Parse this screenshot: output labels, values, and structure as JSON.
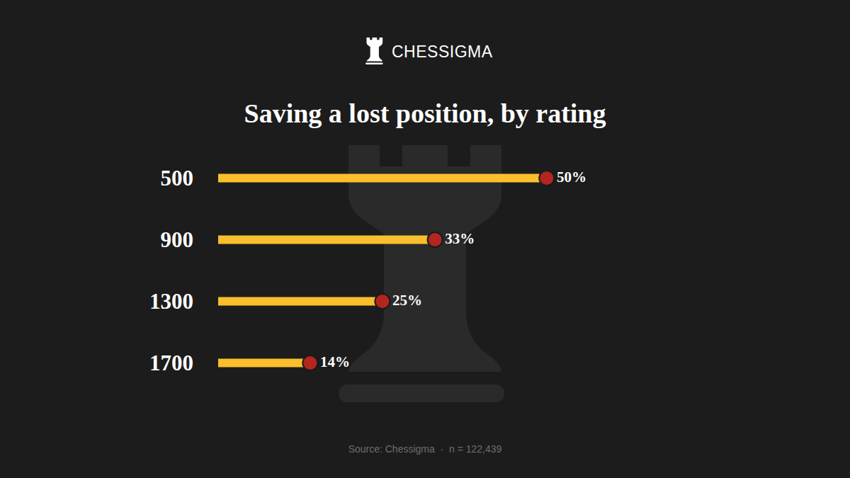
{
  "chart_data": {
    "type": "bar",
    "orientation": "horizontal",
    "brand": "CHESSIGMA",
    "title": "Saving a lost position, by rating",
    "categories": [
      "500",
      "900",
      "1300",
      "1700"
    ],
    "values": [
      50,
      33,
      25,
      14
    ],
    "value_labels": [
      "50%",
      "33%",
      "25%",
      "14%"
    ],
    "data_labels": true,
    "color": "#f9bf2c",
    "marker": "circle",
    "xlim": [
      0,
      80
    ],
    "xticks": [],
    "grid": false,
    "tick_labels": "y",
    "source": "Source: Chessigma  ·  n = 122,439"
  }
}
